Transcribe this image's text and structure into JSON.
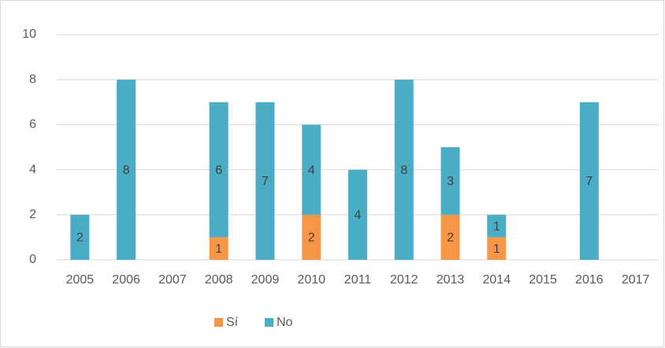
{
  "chart_data": {
    "type": "stacked_bar",
    "categories": [
      "2005",
      "2006",
      "2007",
      "2008",
      "2009",
      "2010",
      "2011",
      "2012",
      "2013",
      "2014",
      "2015",
      "2016",
      "2017"
    ],
    "series": [
      {
        "name": "Sí",
        "color": "#f79646",
        "values": [
          null,
          null,
          null,
          1,
          null,
          2,
          null,
          null,
          2,
          1,
          null,
          null,
          null
        ]
      },
      {
        "name": "No",
        "color": "#4bacc6",
        "values": [
          2,
          8,
          null,
          6,
          7,
          4,
          4,
          8,
          3,
          1,
          null,
          7,
          null
        ]
      }
    ],
    "ylim": [
      0,
      10
    ],
    "yticks": [
      0,
      2,
      4,
      6,
      8,
      10
    ],
    "grid": true,
    "legend": "bottom"
  }
}
